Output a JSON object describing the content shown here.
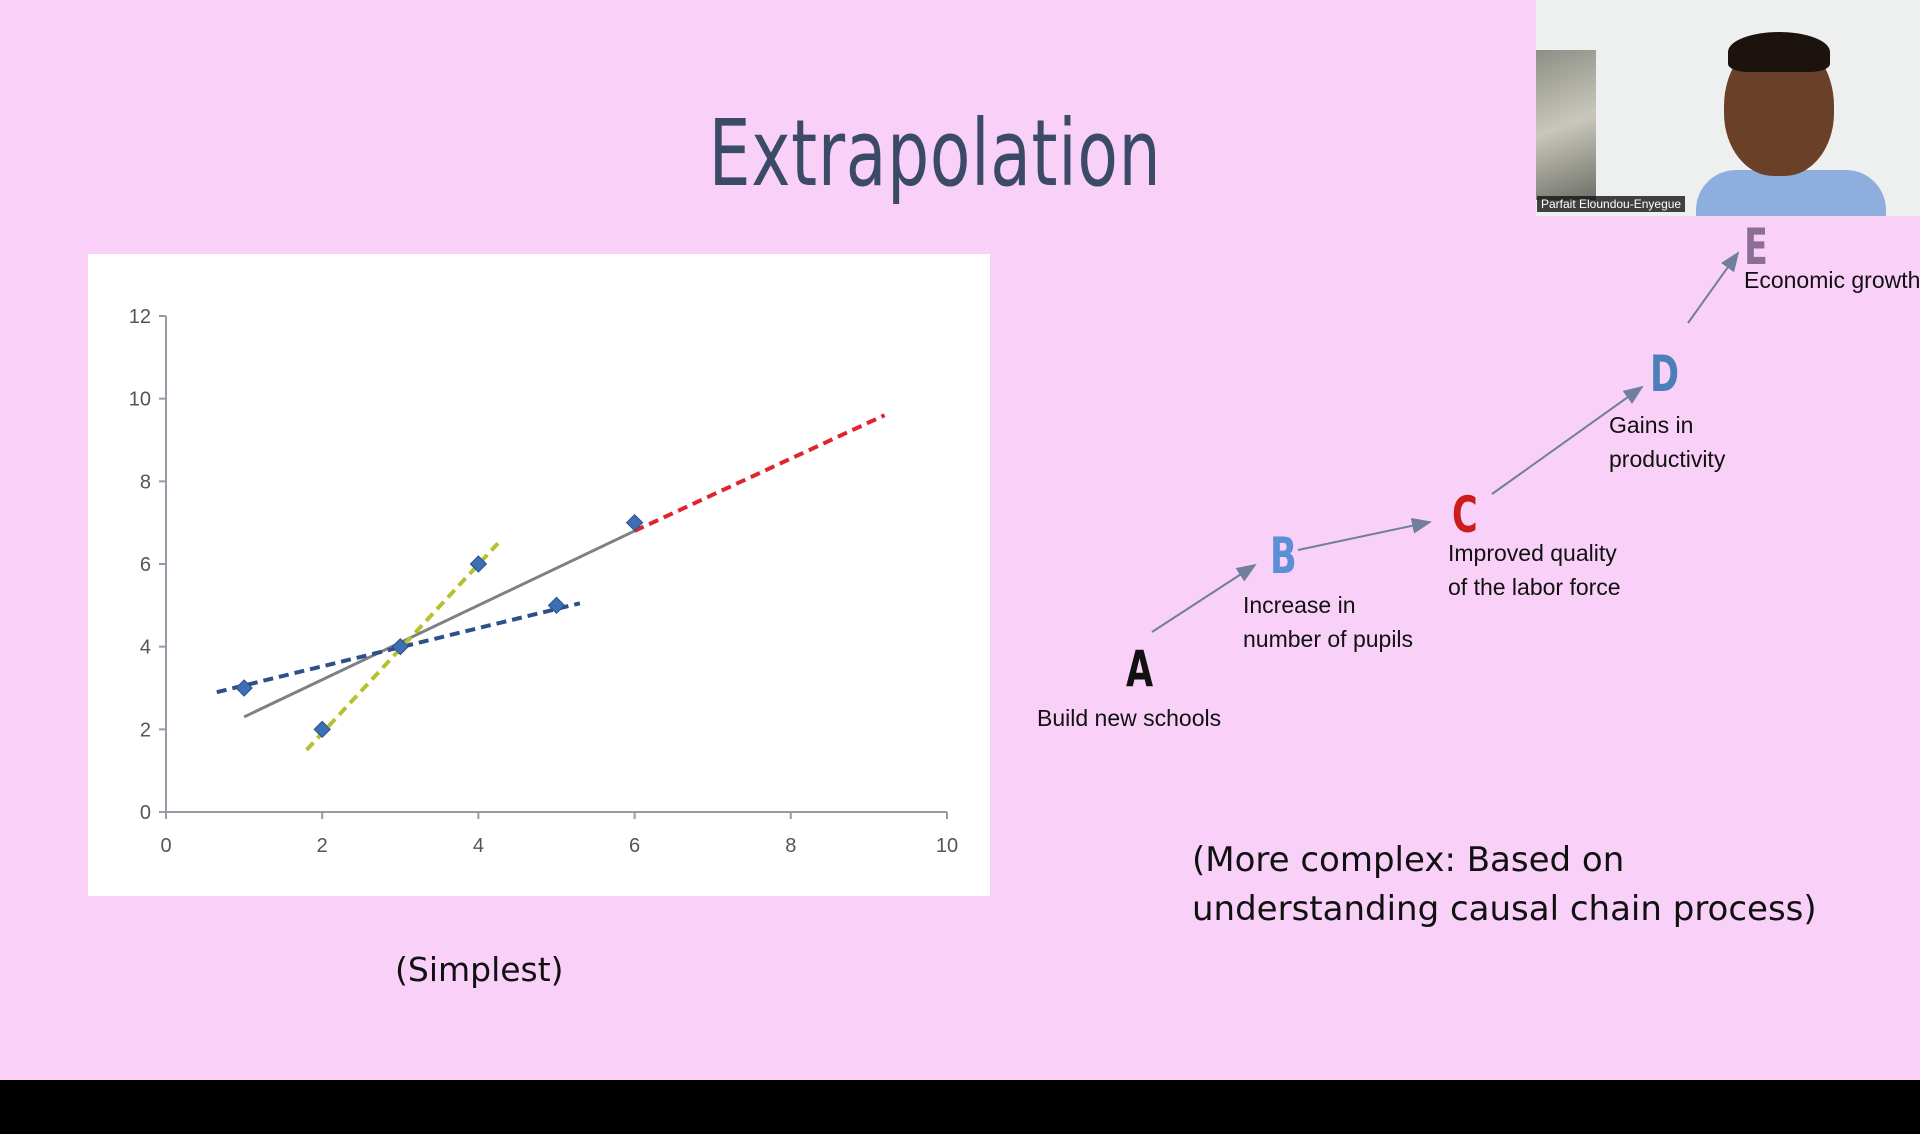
{
  "slide": {
    "title": "Extrapolation",
    "simplest_caption": "(Simplest)",
    "complex_caption_line1": "(More complex: Based on",
    "complex_caption_line2": "understanding causal chain process)"
  },
  "chart_data": {
    "type": "scatter",
    "title": "",
    "xlabel": "",
    "ylabel": "",
    "xlim": [
      0,
      10
    ],
    "ylim": [
      0,
      12
    ],
    "x_ticks": [
      "0",
      "2",
      "4",
      "6",
      "8",
      "10"
    ],
    "y_ticks": [
      "0",
      "2",
      "4",
      "6",
      "8",
      "10",
      "12"
    ],
    "grid": false,
    "points": [
      {
        "x": 1,
        "y": 3
      },
      {
        "x": 2,
        "y": 2
      },
      {
        "x": 3,
        "y": 4
      },
      {
        "x": 4,
        "y": 6
      },
      {
        "x": 5,
        "y": 5
      },
      {
        "x": 6,
        "y": 7
      }
    ],
    "lines": [
      {
        "style": "solid",
        "color": "#7f7f86",
        "x": [
          1,
          6
        ],
        "y": [
          2.3,
          6.8
        ]
      },
      {
        "style": "dashed",
        "color": "#2e4f8a",
        "x": [
          0.65,
          5.3
        ],
        "y": [
          2.9,
          5.05
        ]
      },
      {
        "style": "dashed",
        "color": "#b7c02e",
        "x": [
          1.8,
          4.25
        ],
        "y": [
          1.5,
          6.5
        ]
      },
      {
        "style": "dashed",
        "color": "#e0242e",
        "x": [
          6,
          9.2
        ],
        "y": [
          6.8,
          9.6
        ]
      }
    ],
    "marker_color": "#3c6fb4"
  },
  "causal_chain": {
    "nodes": [
      {
        "letter": "A",
        "color": "#111111",
        "label_lines": [
          "Build new schools"
        ]
      },
      {
        "letter": "B",
        "color": "#5b8fd6",
        "label_lines": [
          "Increase in",
          "number of pupils"
        ]
      },
      {
        "letter": "C",
        "color": "#cc1c1c",
        "label_lines": [
          "Improved quality",
          "of the labor force"
        ]
      },
      {
        "letter": "D",
        "color": "#4a7fb8",
        "label_lines": [
          "Gains in",
          "productivity"
        ]
      },
      {
        "letter": "E",
        "color": "#8a6e96",
        "label_lines": [
          "Economic growth"
        ]
      }
    ],
    "arrow_color": "#6f7f9c"
  },
  "video": {
    "participant_name": "Parfait Eloundou-Enyegue"
  }
}
